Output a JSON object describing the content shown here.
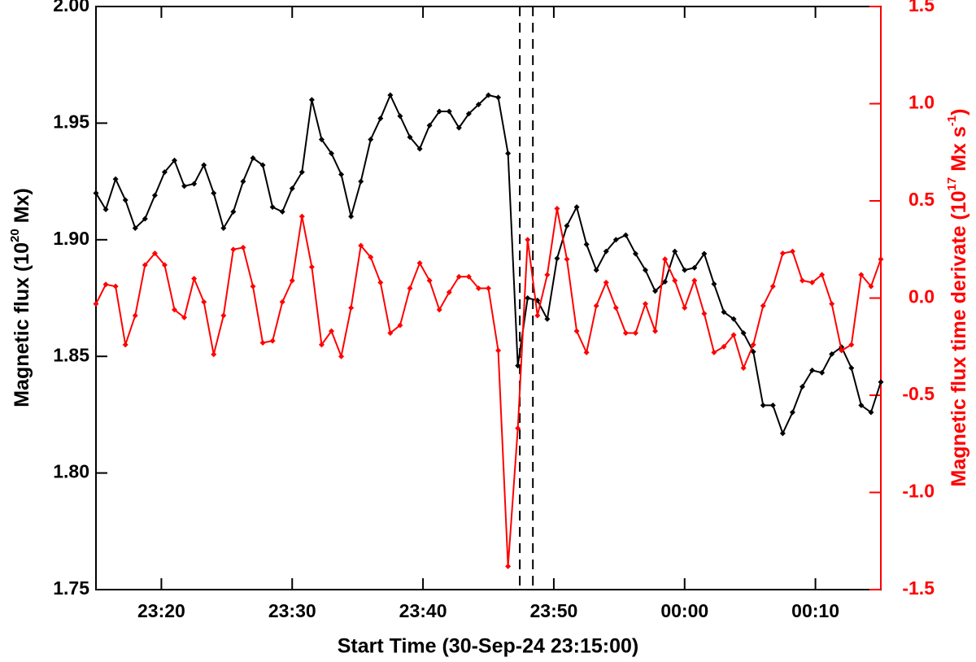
{
  "chart_data": {
    "type": "line",
    "xlabel": "Start Time (30-Sep-24 23:15:00)",
    "ylabel": [
      {
        "text": "Magnetic flux (10"
      },
      {
        "text": "20",
        "sup": true
      },
      {
        "text": " Mx)"
      }
    ],
    "y2label": [
      {
        "text": "Magnetic flux time derivate (10"
      },
      {
        "text": "17",
        "sup": true
      },
      {
        "text": " Mx s"
      },
      {
        "text": "-1",
        "sup": true
      },
      {
        "text": ")"
      }
    ],
    "xlim": [
      0,
      60
    ],
    "xticks": [
      {
        "value": 5,
        "label": "23:20"
      },
      {
        "value": 15,
        "label": "23:30"
      },
      {
        "value": 25,
        "label": "23:40"
      },
      {
        "value": 35,
        "label": "23:50"
      },
      {
        "value": 45,
        "label": "00:00"
      },
      {
        "value": 55,
        "label": "00:10"
      }
    ],
    "ylim": [
      1.75,
      2.0
    ],
    "yticks": [
      1.75,
      {
        "value": 1.8,
        "label": "1.80"
      },
      1.85,
      {
        "value": 1.9,
        "label": "1.90"
      },
      1.95,
      {
        "value": 2.0,
        "label": "2.00"
      }
    ],
    "y2lim": [
      -1.5,
      1.5
    ],
    "y2ticks": [
      -1.5,
      {
        "value": -1.0,
        "label": "-1.0"
      },
      -0.5,
      {
        "value": 0,
        "label": "0.0"
      },
      0.5,
      {
        "value": 1.0,
        "label": "1.0"
      },
      1.5
    ],
    "y2color": "#ff0000",
    "vlines": [
      32.4,
      33.4
    ],
    "x": [
      0,
      0.75,
      1.5,
      2.25,
      3,
      3.75,
      4.5,
      5.25,
      6,
      6.75,
      7.5,
      8.25,
      9,
      9.75,
      10.5,
      11.25,
      12,
      12.75,
      13.5,
      14.25,
      15,
      15.75,
      16.5,
      17.25,
      18,
      18.75,
      19.5,
      20.25,
      21,
      21.75,
      22.5,
      23.25,
      24,
      24.75,
      25.5,
      26.25,
      27,
      27.75,
      28.5,
      29.25,
      30,
      30.75,
      31.5,
      32.25,
      33,
      33.75,
      34.5,
      35.25,
      36,
      36.75,
      37.5,
      38.25,
      39,
      39.75,
      40.5,
      41.25,
      42,
      42.75,
      43.5,
      44.25,
      45,
      45.75,
      46.5,
      47.25,
      48,
      48.75,
      49.5,
      50.25,
      51,
      51.75,
      52.5,
      53.25,
      54,
      54.75,
      55.5,
      56.25,
      57,
      57.75,
      58.5,
      59.25,
      60
    ],
    "series": [
      {
        "color": "#000000",
        "values": [
          1.92,
          1.913,
          1.926,
          1.917,
          1.905,
          1.909,
          1.919,
          1.929,
          1.934,
          1.923,
          1.924,
          1.932,
          1.92,
          1.905,
          1.912,
          1.925,
          1.935,
          1.932,
          1.914,
          1.912,
          1.922,
          1.929,
          1.96,
          1.943,
          1.937,
          1.928,
          1.91,
          1.925,
          1.943,
          1.952,
          1.962,
          1.953,
          1.944,
          1.939,
          1.949,
          1.955,
          1.955,
          1.948,
          1.954,
          1.958,
          1.962,
          1.961,
          1.937,
          1.846,
          1.875,
          1.874,
          1.866,
          1.892,
          1.906,
          1.914,
          1.898,
          1.887,
          1.895,
          1.9,
          1.902,
          1.894,
          1.887,
          1.878,
          1.882,
          1.895,
          1.887,
          1.888,
          1.894,
          1.881,
          1.869,
          1.866,
          1.86,
          1.852,
          1.829,
          1.829,
          1.817,
          1.826,
          1.837,
          1.844,
          1.843,
          1.851,
          1.854,
          1.845,
          1.829,
          1.826,
          1.839
        ]
      },
      {
        "color": "#ff0000",
        "axis": "y2",
        "values": [
          -0.03,
          0.07,
          0.06,
          -0.24,
          -0.09,
          0.17,
          0.23,
          0.17,
          -0.06,
          -0.1,
          0.1,
          -0.02,
          -0.29,
          -0.09,
          0.25,
          0.26,
          0.06,
          -0.23,
          -0.22,
          -0.02,
          0.09,
          0.42,
          0.16,
          -0.24,
          -0.17,
          -0.3,
          -0.05,
          0.27,
          0.21,
          0.08,
          -0.18,
          -0.14,
          0.05,
          0.18,
          0.09,
          -0.06,
          0.03,
          0.11,
          0.11,
          0.05,
          0.05,
          -0.27,
          -1.38,
          -0.67,
          0.3,
          -0.09,
          0.12,
          0.46,
          0.2,
          -0.17,
          -0.28,
          -0.04,
          0.08,
          -0.05,
          -0.18,
          -0.18,
          -0.03,
          -0.17,
          0.2,
          0.09,
          -0.05,
          0.09,
          -0.08,
          -0.28,
          -0.25,
          -0.19,
          -0.36,
          -0.24,
          -0.04,
          0.06,
          0.23,
          0.24,
          0.09,
          0.08,
          0.12,
          -0.03,
          -0.27,
          -0.24,
          0.12,
          0.06,
          0.2
        ]
      }
    ]
  }
}
